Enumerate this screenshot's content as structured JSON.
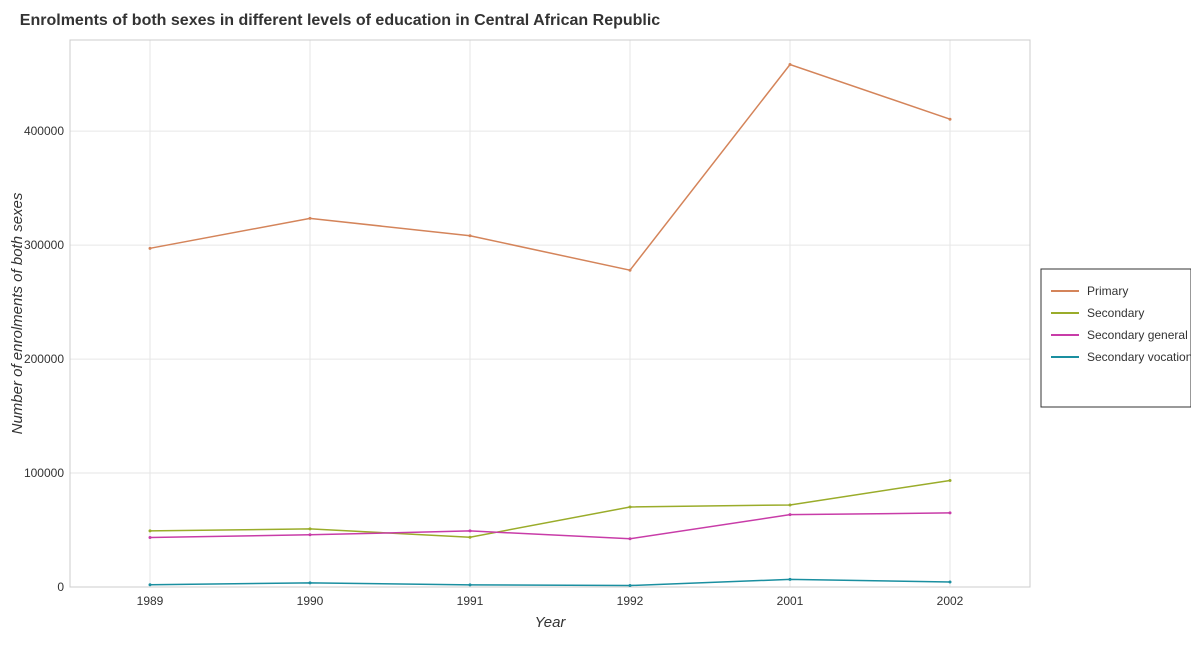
{
  "chart_data": {
    "type": "line",
    "title": "Enrolments of both sexes in different levels of education in Central African Republic",
    "xlabel": "Year",
    "ylabel": "Number of enrolments of both sexes",
    "categories": [
      "1989",
      "1990",
      "1991",
      "1992",
      "2001",
      "2002"
    ],
    "ylim": [
      0,
      480000
    ],
    "yticks": [
      0,
      100000,
      200000,
      300000,
      400000
    ],
    "ytick_labels": [
      "0",
      "100000",
      "200000",
      "300000",
      "400000"
    ],
    "grid": true,
    "legend_position": "right",
    "series": [
      {
        "name": "Primary",
        "color": "#d4845a",
        "values": [
          297200,
          323500,
          308200,
          278000,
          458500,
          410500
        ]
      },
      {
        "name": "Secondary",
        "color": "#9aac2a",
        "values": [
          49200,
          51000,
          43700,
          70200,
          72000,
          93500
        ]
      },
      {
        "name": "Secondary general",
        "color": "#c83ca8",
        "values": [
          43400,
          45800,
          49200,
          42300,
          63500,
          65000
        ]
      },
      {
        "name": "Secondary vocational",
        "color": "#1a8fa0",
        "values": [
          2000,
          3600,
          1900,
          1300,
          6700,
          4400
        ]
      }
    ]
  }
}
